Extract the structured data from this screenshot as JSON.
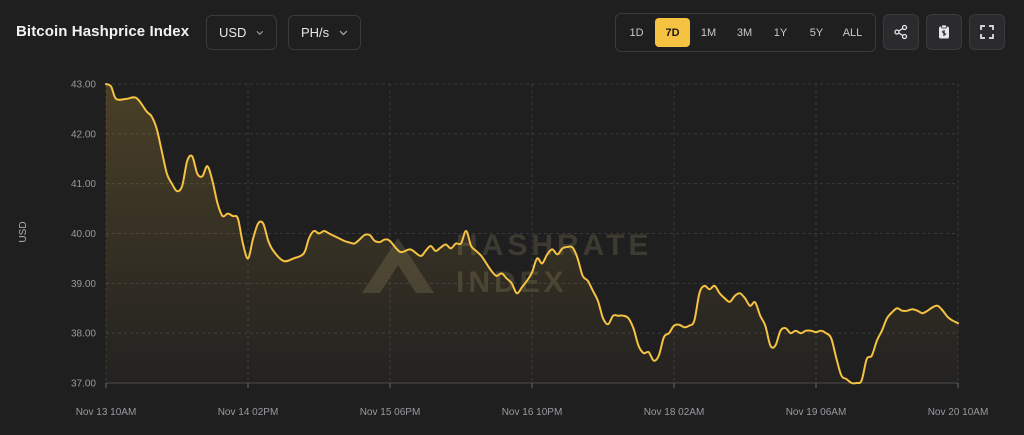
{
  "header": {
    "title": "Bitcoin Hashprice Index",
    "currency_label": "USD",
    "unit_label": "PH/s"
  },
  "range_buttons": [
    "1D",
    "7D",
    "1M",
    "3M",
    "1Y",
    "5Y",
    "ALL"
  ],
  "active_range": "7D",
  "icons": {
    "share": "share-icon",
    "clipboard": "clipboard-icon",
    "fullscreen": "fullscreen-icon"
  },
  "watermark": {
    "line1": "HASHRATE",
    "line2": "INDEX"
  },
  "colors": {
    "background": "#1f1f20",
    "line": "#f5c242",
    "active_button": "#f5c242",
    "grid": "#3a3a3c",
    "watermark": "#3c3a31"
  },
  "chart_data": {
    "type": "area",
    "title": "Bitcoin Hashprice Index",
    "ylabel": "USD",
    "xlabel": "",
    "ylim": [
      37.0,
      43.0
    ],
    "yticks": [
      "43.00",
      "42.00",
      "41.00",
      "40.00",
      "39.00",
      "38.00",
      "37.00"
    ],
    "xticks": [
      "Nov 13 10AM",
      "Nov 14 02PM",
      "Nov 15 06PM",
      "Nov 16 10PM",
      "Nov 18 02AM",
      "Nov 19 06AM",
      "Nov 20 10AM"
    ],
    "xlim_hours": [
      0,
      168
    ],
    "grid": true,
    "series": [
      {
        "x": [
          0,
          1,
          2,
          4,
          6,
          8,
          9,
          10,
          11,
          12,
          13,
          14,
          15,
          16,
          17,
          18,
          19,
          20,
          21,
          22,
          23,
          24,
          25,
          26,
          27,
          28,
          29,
          30,
          31,
          32,
          33,
          35,
          37,
          39,
          40,
          41,
          42,
          43,
          44,
          45,
          46,
          47,
          48,
          49,
          50,
          51,
          52,
          53,
          54,
          55,
          56,
          58,
          60,
          62,
          63,
          64,
          65,
          66,
          67,
          68,
          69,
          70,
          71,
          72,
          73,
          74,
          75,
          76,
          77,
          78,
          79,
          80,
          81,
          82,
          83,
          84,
          85,
          86,
          87,
          88,
          89,
          90,
          91,
          92,
          93,
          94,
          95,
          96,
          97,
          98,
          99,
          100,
          101,
          102,
          103,
          104,
          105,
          106,
          107,
          108,
          109,
          110,
          111,
          112,
          113,
          114,
          115,
          116,
          117,
          118,
          119,
          120,
          121,
          122,
          123,
          124,
          125,
          126,
          127,
          128,
          129,
          130,
          131,
          132,
          133,
          134,
          135,
          136,
          137,
          138,
          139,
          140,
          141,
          142,
          143,
          144,
          145,
          146,
          147,
          148,
          149,
          150,
          151,
          152,
          153,
          154,
          155,
          156,
          157,
          158,
          159,
          160,
          161,
          162,
          163,
          164,
          165,
          166,
          167,
          168
        ],
        "values": [
          43.0,
          42.95,
          42.7,
          42.7,
          42.72,
          42.45,
          42.35,
          42.1,
          41.65,
          41.2,
          41.0,
          40.85,
          40.95,
          41.45,
          41.55,
          41.2,
          41.15,
          41.35,
          41.05,
          40.6,
          40.35,
          40.4,
          40.35,
          40.3,
          39.8,
          39.5,
          39.9,
          40.2,
          40.2,
          39.85,
          39.65,
          39.45,
          39.5,
          39.6,
          39.9,
          40.05,
          40.0,
          40.05,
          40.0,
          39.95,
          39.9,
          39.85,
          39.82,
          39.8,
          39.88,
          39.97,
          39.97,
          39.85,
          39.83,
          39.88,
          39.85,
          39.63,
          39.68,
          39.55,
          39.65,
          39.75,
          39.65,
          39.72,
          39.78,
          39.7,
          39.8,
          39.8,
          40.05,
          39.75,
          39.65,
          39.55,
          39.4,
          39.25,
          39.15,
          39.2,
          39.1,
          39.0,
          38.8,
          38.92,
          39.05,
          39.22,
          39.5,
          39.4,
          39.58,
          39.68,
          39.58,
          39.7,
          39.73,
          39.72,
          39.5,
          39.15,
          39.05,
          38.85,
          38.65,
          38.3,
          38.18,
          38.35,
          38.35,
          38.35,
          38.3,
          38.1,
          37.75,
          37.6,
          37.62,
          37.45,
          37.55,
          37.92,
          38.0,
          38.15,
          38.17,
          38.12,
          38.15,
          38.25,
          38.8,
          38.95,
          38.88,
          38.95,
          38.8,
          38.7,
          38.63,
          38.75,
          38.8,
          38.7,
          38.55,
          38.62,
          38.35,
          38.15,
          37.75,
          37.75,
          38.05,
          38.1,
          38.0,
          38.05,
          38.0,
          38.05,
          38.05,
          38.02,
          38.05,
          38.0,
          37.9,
          37.5,
          37.15,
          37.08,
          37.0,
          37.0,
          37.05,
          37.48,
          37.55,
          37.85,
          38.05,
          38.3,
          38.42,
          38.5,
          38.45,
          38.45,
          38.48,
          38.45,
          38.4,
          38.45,
          38.52,
          38.55,
          38.45,
          38.32,
          38.25,
          38.2
        ]
      }
    ]
  }
}
